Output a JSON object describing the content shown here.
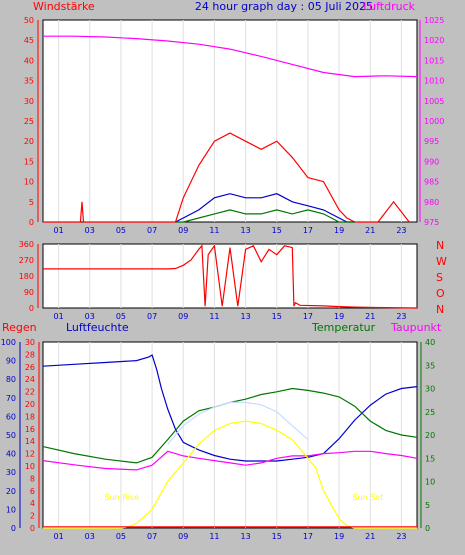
{
  "header": {
    "left_label": "Windstärke",
    "title": "24 hour graph day : 05 Juli 2025",
    "right_label": "Luftdruck"
  },
  "colors": {
    "background": "#c0c0c0",
    "plot_bg": "#ffffff",
    "red": "#ff0000",
    "magenta": "#ff00ff",
    "blue": "#0000cc",
    "green": "#007700",
    "yellow": "#ffff00",
    "lightblue": "#c8dcff",
    "title_blue": "#0000cc"
  },
  "chart_data": [
    {
      "name": "wind-panel",
      "type": "line",
      "x_ticks": [
        "01",
        "03",
        "05",
        "07",
        "09",
        "11",
        "13",
        "15",
        "17",
        "19",
        "21",
        "23"
      ],
      "y_left": {
        "range": [
          0,
          50
        ],
        "ticks": [
          "0",
          "5",
          "10",
          "15",
          "20",
          "25",
          "30",
          "35",
          "40",
          "45",
          "50"
        ]
      },
      "y_right": {
        "range": [
          975,
          1025
        ],
        "ticks": [
          "975",
          "980",
          "985",
          "990",
          "995",
          "1000",
          "1005",
          "1010",
          "1015",
          "1020",
          "1025"
        ]
      },
      "series": [
        {
          "color": "red",
          "x": [
            0,
            2.4,
            2.5,
            2.6,
            8.5,
            9,
            10,
            11,
            12,
            13,
            14,
            15,
            16,
            17,
            18,
            19,
            19.5,
            20,
            21.5,
            22.5,
            23.5
          ],
          "y": [
            0,
            0,
            5,
            0,
            0,
            6,
            14,
            20,
            22,
            20,
            18,
            20,
            16,
            11,
            10,
            3,
            1,
            0,
            0,
            5,
            0
          ]
        },
        {
          "color": "blue",
          "x": [
            8.5,
            9,
            10,
            11,
            12,
            13,
            14,
            15,
            16,
            17,
            18,
            19,
            19.5,
            20
          ],
          "y": [
            0,
            1,
            3,
            6,
            7,
            6,
            6,
            7,
            5,
            4,
            3,
            1,
            0,
            0
          ]
        },
        {
          "color": "green",
          "x": [
            8.5,
            9,
            10,
            11,
            12,
            13,
            14,
            15,
            16,
            17,
            18,
            19,
            19.5,
            20
          ],
          "y": [
            0,
            0,
            1,
            2,
            3,
            2,
            2,
            3,
            2,
            3,
            2,
            0,
            0,
            0
          ]
        },
        {
          "color": "magenta",
          "axis": "right",
          "x": [
            0,
            2,
            4,
            6,
            8,
            10,
            12,
            14,
            16,
            18,
            20,
            22,
            24
          ],
          "y": [
            1021,
            1021,
            1020.8,
            1020.4,
            1019.8,
            1019,
            1017.8,
            1016,
            1014,
            1012,
            1011,
            1011.2,
            1011
          ]
        }
      ]
    },
    {
      "name": "direction-panel",
      "type": "line",
      "y_left": {
        "range": [
          0,
          360
        ],
        "ticks": [
          "0",
          "90",
          "180",
          "270",
          "360"
        ]
      },
      "right_labels": [
        "N",
        "W",
        "S",
        "O",
        "N"
      ],
      "series": [
        {
          "color": "red",
          "x": [
            0,
            8,
            8.5,
            9,
            9.5,
            10,
            10.2,
            10.4,
            10.6,
            11,
            11.5,
            12,
            12.5,
            13,
            13.5,
            14,
            14.5,
            15,
            15.5,
            16,
            16.1,
            16.2,
            16.5,
            18,
            19,
            20,
            22,
            24
          ],
          "y": [
            220,
            220,
            222,
            240,
            270,
            330,
            350,
            10,
            300,
            350,
            10,
            340,
            10,
            330,
            350,
            260,
            330,
            300,
            350,
            340,
            10,
            30,
            15,
            12,
            8,
            5,
            2,
            0
          ]
        }
      ]
    },
    {
      "name": "weather-panel",
      "type": "line",
      "labels": {
        "regen": "Regen",
        "luftfeuchte": "Luftfeuchte",
        "temperatur": "Temperatur",
        "taupunkt": "Taupunkt"
      },
      "annotations": {
        "sunrise": "Sun Rise",
        "sunset": "Sun Set",
        "sunrise_hour": 5.05,
        "sunset_hour": 20.85
      },
      "y_regen": {
        "range": [
          0,
          30
        ],
        "ticks": [
          "0",
          "2",
          "4",
          "6",
          "8",
          "10",
          "12",
          "14",
          "16",
          "18",
          "20",
          "22",
          "24",
          "26",
          "28",
          "30"
        ]
      },
      "y_feuchte": {
        "range": [
          0,
          100
        ],
        "ticks": [
          "0",
          "10",
          "20",
          "30",
          "40",
          "50",
          "60",
          "70",
          "80",
          "90",
          "100"
        ]
      },
      "y_temp": {
        "range": [
          0,
          40
        ],
        "ticks": [
          "0",
          "5",
          "10",
          "15",
          "20",
          "25",
          "30",
          "35",
          "40"
        ]
      },
      "series": [
        {
          "color": "blue",
          "axis": "feuchte",
          "x": [
            0,
            2,
            4,
            6,
            6.8,
            7,
            7.3,
            7.6,
            8,
            8.5,
            9,
            10,
            11,
            12,
            13,
            14,
            15,
            16,
            17,
            18,
            19,
            20,
            21,
            22,
            23,
            24
          ],
          "y": [
            87,
            88,
            89,
            90,
            92,
            93,
            85,
            75,
            64,
            53,
            46,
            42,
            39,
            37,
            36,
            36,
            36,
            37,
            38,
            40,
            48,
            58,
            66,
            72,
            75,
            76
          ]
        },
        {
          "color": "green",
          "axis": "temp",
          "x": [
            0,
            2,
            4,
            6,
            7,
            8,
            9,
            10,
            11,
            12,
            13,
            14,
            15,
            16,
            17,
            18,
            19,
            20,
            21,
            22,
            23,
            24
          ],
          "y": [
            17.5,
            16,
            14.8,
            14,
            15.2,
            19,
            23,
            25.2,
            26,
            27,
            27.7,
            28.7,
            29.3,
            30,
            29.6,
            29,
            28.2,
            26.2,
            23,
            21,
            20,
            19.5
          ]
        },
        {
          "color": "magenta",
          "axis": "temp",
          "x": [
            0,
            2,
            4,
            6,
            7,
            8,
            9,
            10,
            11,
            12,
            13,
            14,
            15,
            16,
            17,
            18,
            19,
            20,
            21,
            22,
            23,
            24
          ],
          "y": [
            14.5,
            13.6,
            12.8,
            12.5,
            13.5,
            16.5,
            15.5,
            15,
            14.5,
            14,
            13.5,
            14,
            15,
            15.5,
            15.5,
            16,
            16.2,
            16.5,
            16.5,
            16,
            15.6,
            15
          ]
        },
        {
          "color": "yellow",
          "axis": "temp",
          "x": [
            0,
            5,
            5.5,
            6,
            6.5,
            7,
            8,
            9,
            10,
            11,
            12,
            13,
            14,
            15,
            16,
            17,
            17.5,
            18,
            18.5,
            19,
            19.5,
            20,
            24
          ],
          "y": [
            0,
            0,
            0.3,
            1,
            2.5,
            4,
            10,
            14,
            18,
            21,
            22.5,
            23,
            22.5,
            21,
            19,
            15,
            13,
            8,
            5,
            2,
            0.5,
            0,
            0
          ]
        },
        {
          "color": "lightblue",
          "axis": "temp",
          "x": [
            8,
            9,
            10,
            11,
            12,
            13,
            14,
            15,
            16,
            17
          ],
          "y": [
            18,
            22,
            24.5,
            26,
            27,
            27,
            26.5,
            25,
            22,
            19
          ]
        },
        {
          "color": "red",
          "axis": "regen",
          "x": [
            0,
            24
          ],
          "y": [
            0.2,
            0.2
          ]
        }
      ]
    }
  ]
}
